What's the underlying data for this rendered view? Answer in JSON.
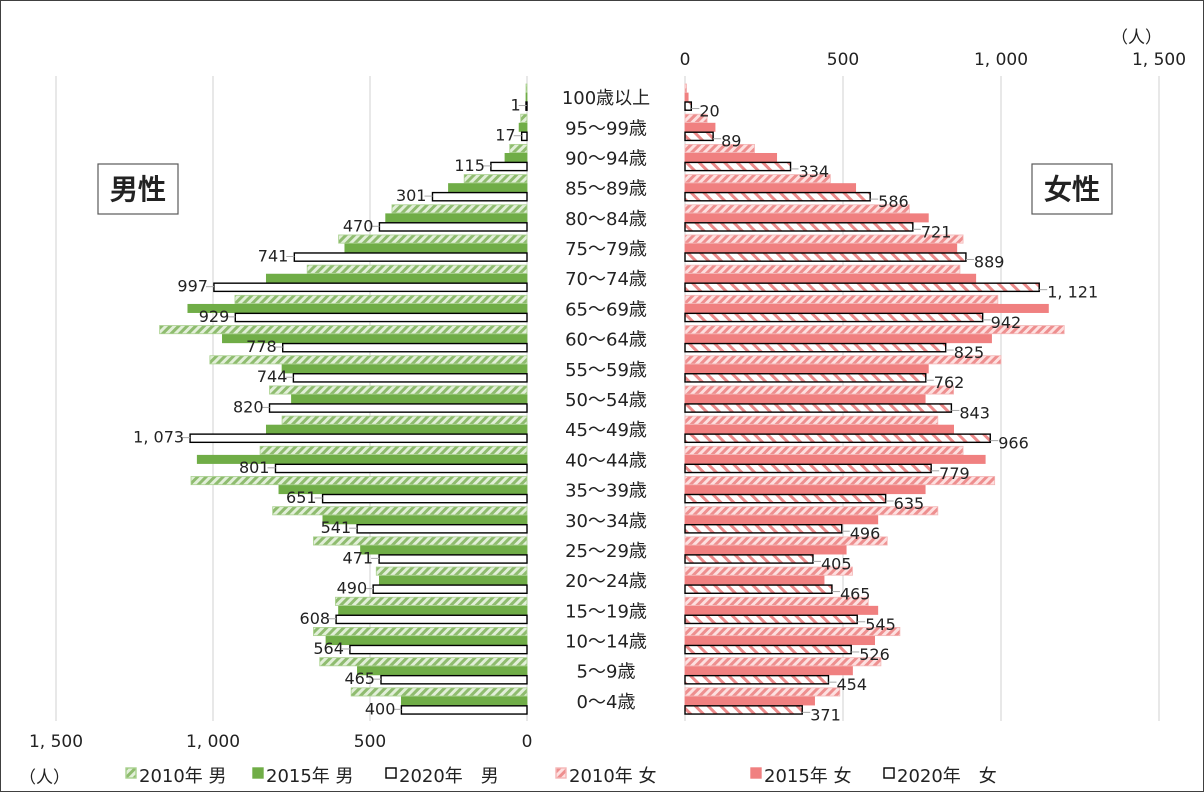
{
  "chart_data": {
    "type": "bar",
    "unit": "（人）",
    "age_groups": [
      "100歳以上",
      "95～99歳",
      "90～94歳",
      "85～89歳",
      "80～84歳",
      "75～79歳",
      "70～74歳",
      "65～69歳",
      "60～64歳",
      "55～59歳",
      "50～54歳",
      "45～49歳",
      "40～44歳",
      "35～39歳",
      "30～34歳",
      "25～29歳",
      "20～24歳",
      "15～19歳",
      "10～14歳",
      "5～9歳",
      "0～4歳"
    ],
    "male": {
      "label": "男性",
      "x_ticks": [
        "1, 500",
        "1, 000",
        "500",
        "0"
      ],
      "xlim": [
        0,
        1500
      ],
      "series": [
        {
          "name": "2010年 男",
          "values": [
            1,
            20,
            55,
            200,
            430,
            600,
            700,
            930,
            1170,
            1010,
            820,
            780,
            850,
            1070,
            810,
            680,
            480,
            610,
            680,
            660,
            560
          ]
        },
        {
          "name": "2015年 男",
          "values": [
            2,
            25,
            70,
            250,
            450,
            580,
            830,
            1080,
            970,
            780,
            750,
            830,
            1050,
            790,
            650,
            530,
            470,
            600,
            640,
            540,
            400
          ]
        },
        {
          "name": "2020年　男",
          "values": [
            1,
            17,
            115,
            301,
            470,
            741,
            997,
            929,
            778,
            744,
            820,
            1073,
            801,
            651,
            541,
            471,
            490,
            608,
            564,
            465,
            400
          ]
        }
      ],
      "labeled": [
        1,
        17,
        115,
        301,
        470,
        741,
        997,
        929,
        778,
        744,
        820,
        1073,
        801,
        651,
        541,
        471,
        490,
        608,
        564,
        465,
        400
      ],
      "value_labels": [
        "1",
        "17",
        "115",
        "301",
        "470",
        "741",
        "997",
        "929",
        "778",
        "744",
        "820",
        "1, 073",
        "801",
        "651",
        "541",
        "471",
        "490",
        "608",
        "564",
        "465",
        "400"
      ]
    },
    "female": {
      "label": "女性",
      "x_ticks": [
        "0",
        "500",
        "1, 000",
        "1, 500"
      ],
      "xlim": [
        0,
        1500
      ],
      "series": [
        {
          "name": "2010年 女",
          "values": [
            5,
            70,
            220,
            460,
            710,
            880,
            870,
            990,
            1200,
            1000,
            850,
            800,
            880,
            980,
            800,
            640,
            530,
            580,
            680,
            620,
            490
          ]
        },
        {
          "name": "2015年 女",
          "values": [
            10,
            95,
            290,
            540,
            770,
            860,
            920,
            1150,
            970,
            770,
            760,
            850,
            950,
            760,
            610,
            510,
            440,
            610,
            600,
            530,
            410
          ]
        },
        {
          "name": "2020年　女",
          "values": [
            20,
            89,
            334,
            586,
            721,
            889,
            1121,
            942,
            825,
            762,
            843,
            966,
            779,
            635,
            496,
            405,
            465,
            545,
            526,
            454,
            371
          ]
        }
      ],
      "value_labels": [
        "20",
        "89",
        "334",
        "586",
        "721",
        "889",
        "1, 121",
        "942",
        "825",
        "762",
        "843",
        "966",
        "779",
        "635",
        "496",
        "405",
        "465",
        "545",
        "526",
        "454",
        "371"
      ]
    },
    "grid": true,
    "legend_position": "bottom"
  },
  "colors": {
    "green": "#70ad47",
    "green_light": "#a9d18e",
    "pink": "#f08080",
    "pink_light": "#f4b6b6",
    "black": "#000000",
    "grid": "#d0d0d0"
  }
}
